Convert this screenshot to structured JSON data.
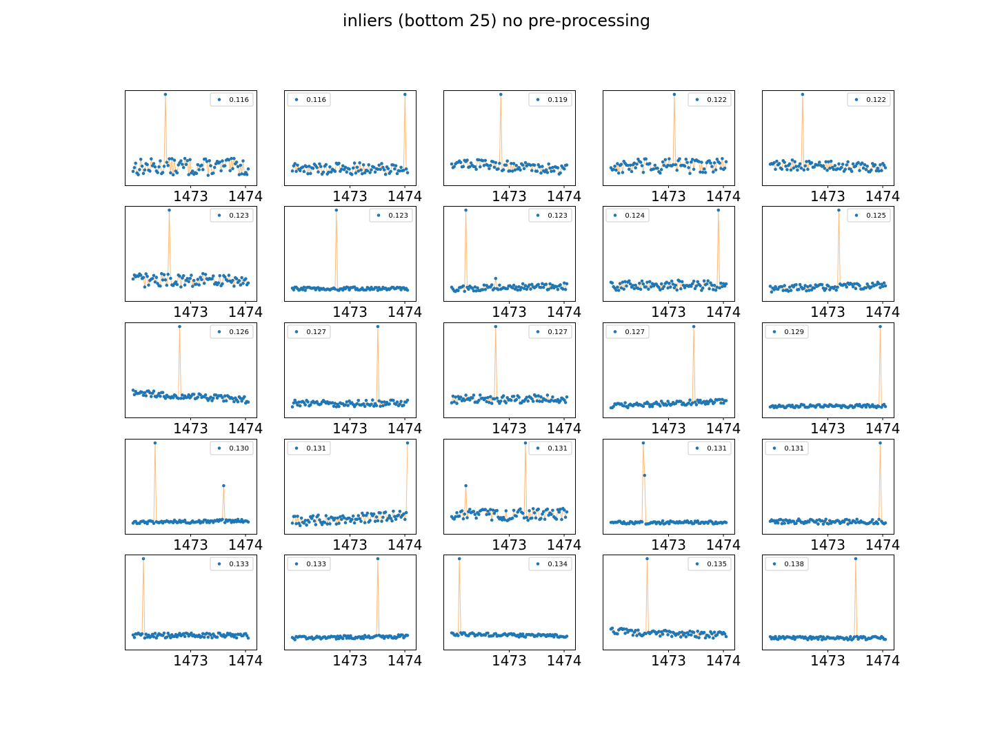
{
  "figure": {
    "title": "inliers (bottom 25) no pre-processing"
  },
  "colors": {
    "points": "#1f77b4",
    "line": "#ffbb78"
  },
  "chart_data": {
    "type": "scatter",
    "grid": false,
    "legend_placement": "upper (left or right, whichever is free)",
    "x_ticks": [
      1473,
      1474
    ],
    "tick_labels": [
      "1473",
      "1474"
    ],
    "xlim": [
      1471.9,
      1474.1
    ],
    "subplots": [
      {
        "legend": "0.116",
        "spikes": [
          [
            1472.55,
            1.0
          ],
          [
            1472.9,
            0.25
          ]
        ],
        "noise": 0.1,
        "start": 0.15,
        "drift": 0.0,
        "legend_pos": "right"
      },
      {
        "legend": "0.116",
        "spikes": [
          [
            1474.0,
            1.0
          ]
        ],
        "noise": 0.07,
        "start": 0.13,
        "drift": 0.0,
        "legend_pos": "left"
      },
      {
        "legend": "0.119",
        "spikes": [
          [
            1472.85,
            1.0
          ]
        ],
        "noise": 0.06,
        "start": 0.2,
        "drift": -0.08,
        "legend_pos": "right"
      },
      {
        "legend": "0.122",
        "spikes": [
          [
            1473.1,
            1.0
          ]
        ],
        "noise": 0.09,
        "start": 0.15,
        "drift": 0.02,
        "legend_pos": "right"
      },
      {
        "legend": "0.122",
        "spikes": [
          [
            1472.55,
            1.0
          ]
        ],
        "noise": 0.06,
        "start": 0.18,
        "drift": -0.04,
        "legend_pos": "right"
      },
      {
        "legend": "0.123",
        "spikes": [
          [
            1472.6,
            1.0
          ]
        ],
        "noise": 0.08,
        "start": 0.18,
        "drift": 0.0,
        "legend_pos": "right"
      },
      {
        "legend": "0.123",
        "spikes": [
          [
            1472.75,
            1.0
          ]
        ],
        "noise": 0.02,
        "start": 0.08,
        "drift": 0.0,
        "legend_pos": "right"
      },
      {
        "legend": "0.123",
        "spikes": [
          [
            1472.2,
            1.0
          ],
          [
            1472.75,
            0.2
          ]
        ],
        "noise": 0.04,
        "start": 0.08,
        "drift": 0.03,
        "legend_pos": "right"
      },
      {
        "legend": "0.124",
        "spikes": [
          [
            1473.9,
            1.0
          ]
        ],
        "noise": 0.06,
        "start": 0.12,
        "drift": 0.0,
        "legend_pos": "left"
      },
      {
        "legend": "0.125",
        "spikes": [
          [
            1473.2,
            1.0
          ]
        ],
        "noise": 0.04,
        "start": 0.08,
        "drift": 0.04,
        "legend_pos": "right"
      },
      {
        "legend": "0.126",
        "spikes": [
          [
            1472.8,
            1.0
          ]
        ],
        "noise": 0.04,
        "start": 0.22,
        "drift": -0.08,
        "legend_pos": "right"
      },
      {
        "legend": "0.127",
        "spikes": [
          [
            1473.5,
            1.0
          ]
        ],
        "noise": 0.04,
        "start": 0.1,
        "drift": 0.0,
        "legend_pos": "left"
      },
      {
        "legend": "0.127",
        "spikes": [
          [
            1472.75,
            1.0
          ]
        ],
        "noise": 0.05,
        "start": 0.15,
        "drift": 0.0,
        "legend_pos": "right"
      },
      {
        "legend": "0.127",
        "spikes": [
          [
            1473.45,
            1.0
          ],
          [
            1473.15,
            0.12
          ]
        ],
        "noise": 0.03,
        "start": 0.07,
        "drift": 0.06,
        "legend_pos": "left"
      },
      {
        "legend": "0.129",
        "spikes": [
          [
            1473.95,
            1.0
          ]
        ],
        "noise": 0.02,
        "start": 0.07,
        "drift": 0.0,
        "legend_pos": "left"
      },
      {
        "legend": "0.130",
        "spikes": [
          [
            1472.35,
            1.0
          ],
          [
            1473.6,
            0.5
          ]
        ],
        "noise": 0.02,
        "start": 0.07,
        "drift": 0.02,
        "legend_pos": "right"
      },
      {
        "legend": "0.131",
        "spikes": [
          [
            1474.05,
            1.0
          ]
        ],
        "noise": 0.06,
        "start": 0.08,
        "drift": 0.07,
        "legend_pos": "left"
      },
      {
        "legend": "0.131",
        "spikes": [
          [
            1473.3,
            1.0
          ],
          [
            1472.2,
            0.5
          ]
        ],
        "noise": 0.07,
        "start": 0.15,
        "drift": 0.02,
        "legend_pos": "right"
      },
      {
        "legend": "0.131",
        "spikes": [
          [
            1472.55,
            1.0
          ],
          [
            1472.55,
            0.62
          ]
        ],
        "noise": 0.02,
        "start": 0.07,
        "drift": 0.0,
        "legend_pos": "right"
      },
      {
        "legend": "0.131",
        "spikes": [
          [
            1473.95,
            1.0
          ]
        ],
        "noise": 0.03,
        "start": 0.08,
        "drift": 0.0,
        "legend_pos": "left"
      },
      {
        "legend": "0.133",
        "spikes": [
          [
            1472.15,
            1.0
          ]
        ],
        "noise": 0.03,
        "start": 0.1,
        "drift": 0.0,
        "legend_pos": "right"
      },
      {
        "legend": "0.133",
        "spikes": [
          [
            1473.5,
            1.0
          ]
        ],
        "noise": 0.02,
        "start": 0.07,
        "drift": 0.02,
        "legend_pos": "left"
      },
      {
        "legend": "0.134",
        "spikes": [
          [
            1472.1,
            1.0
          ]
        ],
        "noise": 0.02,
        "start": 0.12,
        "drift": -0.03,
        "legend_pos": "right"
      },
      {
        "legend": "0.135",
        "spikes": [
          [
            1472.6,
            1.0
          ]
        ],
        "noise": 0.04,
        "start": 0.15,
        "drift": -0.05,
        "legend_pos": "right"
      },
      {
        "legend": "0.138",
        "spikes": [
          [
            1473.5,
            1.0
          ]
        ],
        "noise": 0.02,
        "start": 0.07,
        "drift": 0.0,
        "legend_pos": "left"
      }
    ]
  }
}
